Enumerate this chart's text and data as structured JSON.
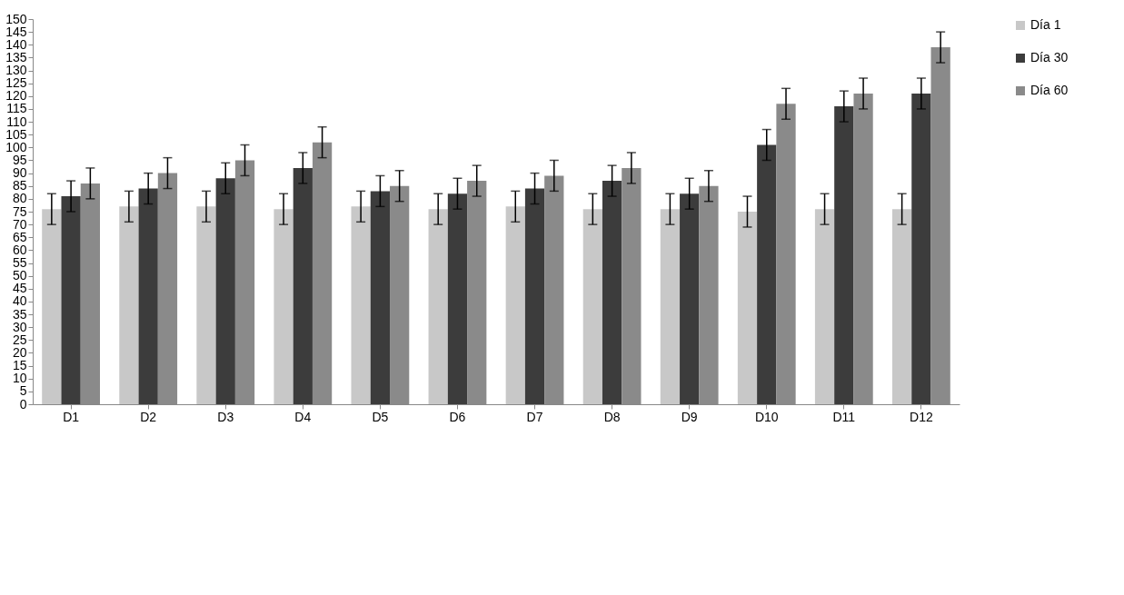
{
  "chart_data": {
    "type": "bar",
    "categories": [
      "D1",
      "D2",
      "D3",
      "D4",
      "D5",
      "D6",
      "D7",
      "D8",
      "D9",
      "D10",
      "D11",
      "D12"
    ],
    "series": [
      {
        "name": "Día 1",
        "color": "#c8c8c8",
        "values": [
          76,
          77,
          77,
          76,
          77,
          76,
          77,
          76,
          76,
          75,
          76,
          76
        ],
        "errors": [
          6,
          6,
          6,
          6,
          6,
          6,
          6,
          6,
          6,
          6,
          6,
          6
        ]
      },
      {
        "name": "Día 30",
        "color": "#3c3c3c",
        "values": [
          81,
          84,
          88,
          92,
          83,
          82,
          84,
          87,
          82,
          101,
          116,
          121
        ],
        "errors": [
          6,
          6,
          6,
          6,
          6,
          6,
          6,
          6,
          6,
          6,
          6,
          6
        ]
      },
      {
        "name": "Día 60",
        "color": "#8a8a8a",
        "values": [
          86,
          90,
          95,
          102,
          85,
          87,
          89,
          92,
          85,
          117,
          121,
          139
        ],
        "errors": [
          6,
          6,
          6,
          6,
          6,
          6,
          6,
          6,
          6,
          6,
          6,
          6
        ]
      }
    ],
    "ylim": [
      0,
      150
    ],
    "yticks": [
      0,
      5,
      10,
      15,
      20,
      25,
      30,
      35,
      40,
      45,
      50,
      55,
      60,
      65,
      70,
      75,
      80,
      85,
      90,
      95,
      100,
      105,
      110,
      115,
      120,
      125,
      130,
      135,
      140,
      145,
      150
    ],
    "grid": false,
    "legend": "right"
  }
}
